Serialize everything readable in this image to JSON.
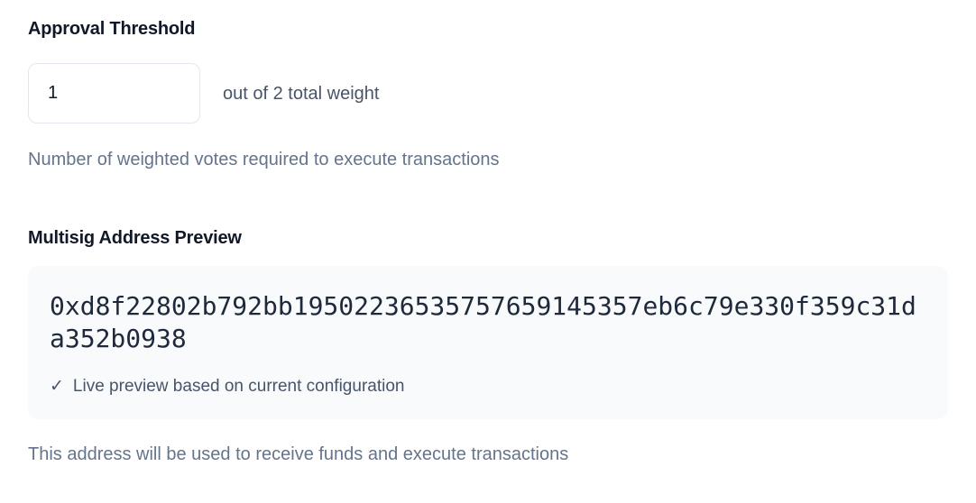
{
  "form": {
    "threshold": {
      "label": "Approval Threshold",
      "value": "1",
      "suffix_text": "out of 2 total weight",
      "helper_text": "Number of weighted votes required to execute transactions"
    },
    "address_preview": {
      "label": "Multisig Address Preview",
      "address": "0xd8f22802b792bb19502236535757659145357eb6c79e330f359c31da352b0938",
      "check_icon": "✓",
      "note": "Live preview based on current configuration",
      "helper_text": "This address will be used to receive funds and execute transactions"
    }
  },
  "colors": {
    "heading_text": "#111827",
    "muted_text": "#64748b",
    "slate_text": "#475569",
    "address_text": "#1e293b",
    "preview_box_bg": "#f8fafc",
    "input_border": "#e2e8f0"
  }
}
